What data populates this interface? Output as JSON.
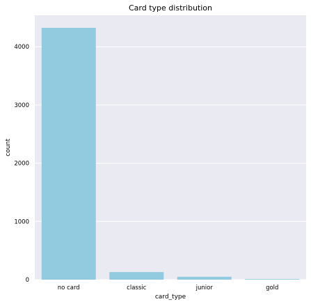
{
  "chart_data": {
    "type": "bar",
    "title": "Card type distribution",
    "xlabel": "card_type",
    "ylabel": "count",
    "categories": [
      "no card",
      "classic",
      "junior",
      "gold"
    ],
    "values": [
      4325,
      130,
      50,
      10
    ],
    "ylim": [
      0,
      4540
    ],
    "yticks": [
      0,
      1000,
      2000,
      3000,
      4000
    ],
    "grid": true,
    "colors": {
      "bar": "#92cbe0",
      "plot_background": "#eaeaf2",
      "grid": "#ffffff"
    }
  }
}
